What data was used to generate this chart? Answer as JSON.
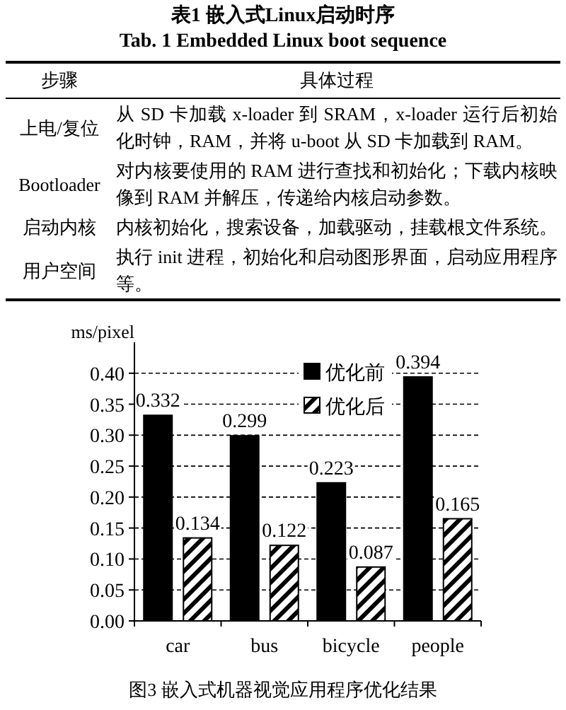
{
  "chart_data": [
    {
      "type": "other",
      "title": "表1 嵌入式Linux启动时序",
      "subtitle": "Tab. 1 Embedded Linux boot sequence",
      "annotations": [
        "步骤",
        "具体过程",
        "上电/复位",
        "从 SD 卡加载 x-loader 到 SRAM，x-loader 运行后初始化时钟，RAM，并将 u-boot 从 SD 卡加载到 RAM。",
        "Bootloader",
        "对内核要使用的 RAM 进行查找和初始化；下载内核映像到 RAM 并解压，传递给内核启动参数。",
        "启动内核",
        "内核初始化，搜索设备，加载驱动，挂载根文件系统。",
        "用户空间",
        "执行 init 进程，初始化和启动图形界面，启动应用程序等。"
      ]
    },
    {
      "type": "bar",
      "title": "图3 嵌入式机器视觉应用程序优化结果",
      "ylabel": "ms/pixel",
      "categories": [
        "car",
        "bus",
        "bicycle",
        "people"
      ],
      "series": [
        {
          "name": "优化前",
          "color": "#000000",
          "values": [
            0.332,
            0.299,
            0.223,
            0.394
          ]
        },
        {
          "name": "优化后",
          "color": "#000000",
          "values": [
            0.134,
            0.122,
            0.087,
            0.165
          ]
        }
      ],
      "ylim": [
        0,
        0.45
      ],
      "yticks": [
        {
          "value": 0,
          "label": "0.00"
        },
        {
          "value": 0.05,
          "label": "0.05"
        },
        {
          "value": 0.1,
          "label": "0.10"
        },
        {
          "value": 0.15,
          "label": "0.15"
        },
        {
          "value": 0.2,
          "label": "0.20"
        },
        {
          "value": 0.25,
          "label": "0.25"
        },
        {
          "value": 0.3,
          "label": "0.30"
        },
        {
          "value": 0.35,
          "label": "0.35"
        },
        {
          "value": 0.4,
          "label": "0.40"
        }
      ],
      "grid": "y",
      "legend": "top right",
      "data_labels": true
    }
  ]
}
